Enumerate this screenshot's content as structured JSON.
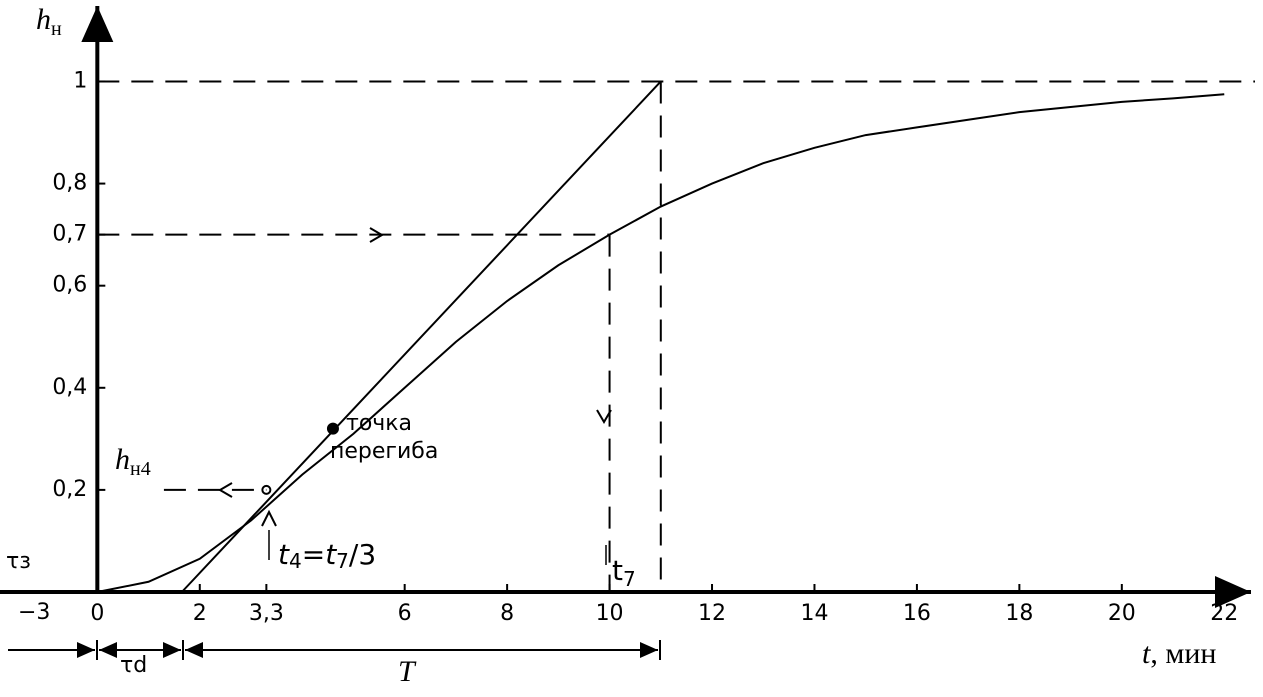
{
  "chart_data": {
    "type": "line",
    "xlim": [
      -1.9,
      22.6
    ],
    "ylim": [
      0,
      1.14
    ],
    "xticks": [
      {
        "value": 0,
        "label": "0"
      },
      2,
      {
        "value": 3.3,
        "label": "3,3"
      },
      6,
      8,
      10,
      12,
      14,
      16,
      18,
      20,
      22
    ],
    "yticks": [
      {
        "value": 0.2,
        "label": "0,2"
      },
      {
        "value": 0.4,
        "label": "0,4"
      },
      {
        "value": 0.6,
        "label": "0,6"
      },
      {
        "value": 0.7,
        "label": "0,7"
      },
      {
        "value": 0.8,
        "label": "0,8"
      },
      1
    ],
    "x_extra_label": "−3",
    "y_label": {
      "text": "h",
      "sub": "н"
    },
    "x_label": {
      "text": "t",
      "rest": ", мин"
    },
    "series": [
      {
        "color": "#000000",
        "dashed": false,
        "x": [
          0,
          1,
          2,
          3,
          4,
          5,
          6,
          7,
          8,
          9,
          10,
          11,
          12,
          13,
          14,
          15,
          16,
          17,
          18,
          19,
          20,
          21,
          22
        ],
        "values": [
          0,
          0.02,
          0.065,
          0.14,
          0.23,
          0.31,
          0.4,
          0.49,
          0.57,
          0.64,
          0.7,
          0.755,
          0.8,
          0.84,
          0.87,
          0.895,
          0.91,
          0.925,
          0.94,
          0.95,
          0.96,
          0.967,
          0.975
        ]
      },
      {
        "color": "#000000",
        "dashed": false,
        "x": [
          1.65,
          11
        ],
        "values": [
          0,
          1
        ]
      },
      {
        "color": "#000000",
        "dashed": true,
        "x": [
          0,
          22.6
        ],
        "values": [
          1,
          1
        ]
      },
      {
        "color": "#000000",
        "dashed": true,
        "x": [
          11,
          11
        ],
        "values": [
          1,
          0
        ]
      },
      {
        "color": "#000000",
        "dashed": true,
        "x": [
          0,
          10
        ],
        "values": [
          0.7,
          0.7
        ]
      },
      {
        "color": "#000000",
        "dashed": true,
        "x": [
          10,
          10
        ],
        "values": [
          0.7,
          0
        ]
      },
      {
        "color": "#000000",
        "dashed": true,
        "x": [
          1.3,
          3.3
        ],
        "values": [
          0.2,
          0.2
        ]
      }
    ],
    "points": [
      {
        "x": 4.6,
        "y": 0.32
      },
      {
        "x": 3.3,
        "y": 0.2
      }
    ],
    "annotations": {
      "inflection_1": "точка",
      "inflection_2": "перегиба",
      "h4": {
        "text": "h",
        "sub": "н4"
      },
      "t4": {
        "a": "t",
        "b": "4",
        "c": "=",
        "d": "t",
        "e": "7",
        "f": "/3"
      },
      "t7": {
        "text": "t",
        "sub": "7"
      },
      "tau_z": "τз",
      "tau_d": "τd",
      "T": "T"
    }
  }
}
